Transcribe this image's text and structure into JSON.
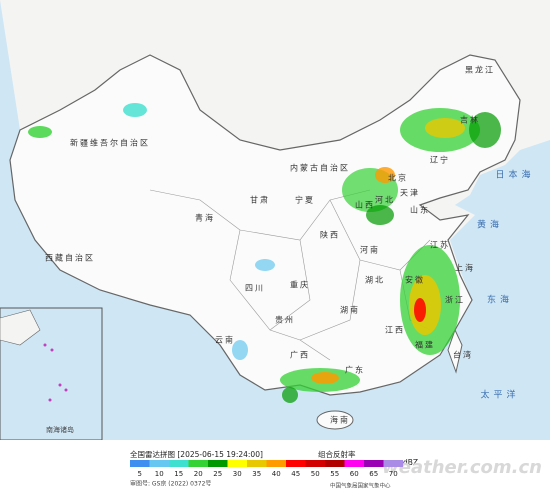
{
  "map": {
    "labels": [
      "新疆维吾尔自治区",
      "西藏自治区",
      "青海",
      "四川",
      "内蒙古自治区",
      "黑龙江",
      "吉林",
      "辽宁",
      "北京",
      "天津",
      "河北",
      "山西",
      "陕西",
      "甘肃",
      "宁夏",
      "河南",
      "山东",
      "江苏",
      "湖北",
      "安徽",
      "上海",
      "浙江",
      "湖南",
      "江西",
      "福建",
      "台湾",
      "广东",
      "广西",
      "海南",
      "贵州",
      "云南",
      "重庆",
      "日本海",
      "黄海",
      "东海",
      "太平洋",
      "南海诸岛"
    ],
    "footer": {
      "approval": "审图号: GS京 (2022) 0372号",
      "agency": "中国气象局国家气象中心",
      "watermark": "weather.com.cn"
    }
  },
  "legend": {
    "title": "全国雷达拼图 [2025-06-15 19:24:00]",
    "product": "组合反射率",
    "unit": "dBZ",
    "ticks": [
      5,
      10,
      15,
      20,
      25,
      30,
      35,
      40,
      45,
      50,
      55,
      60,
      65,
      70
    ],
    "colors": [
      "#3f8ff0",
      "#66c8f0",
      "#40e0d0",
      "#34d234",
      "#009a00",
      "#ffff00",
      "#e8c800",
      "#ff9a00",
      "#ff0000",
      "#d20000",
      "#b00000",
      "#ff00f0",
      "#9a00b4",
      "#aa8ce6"
    ]
  }
}
